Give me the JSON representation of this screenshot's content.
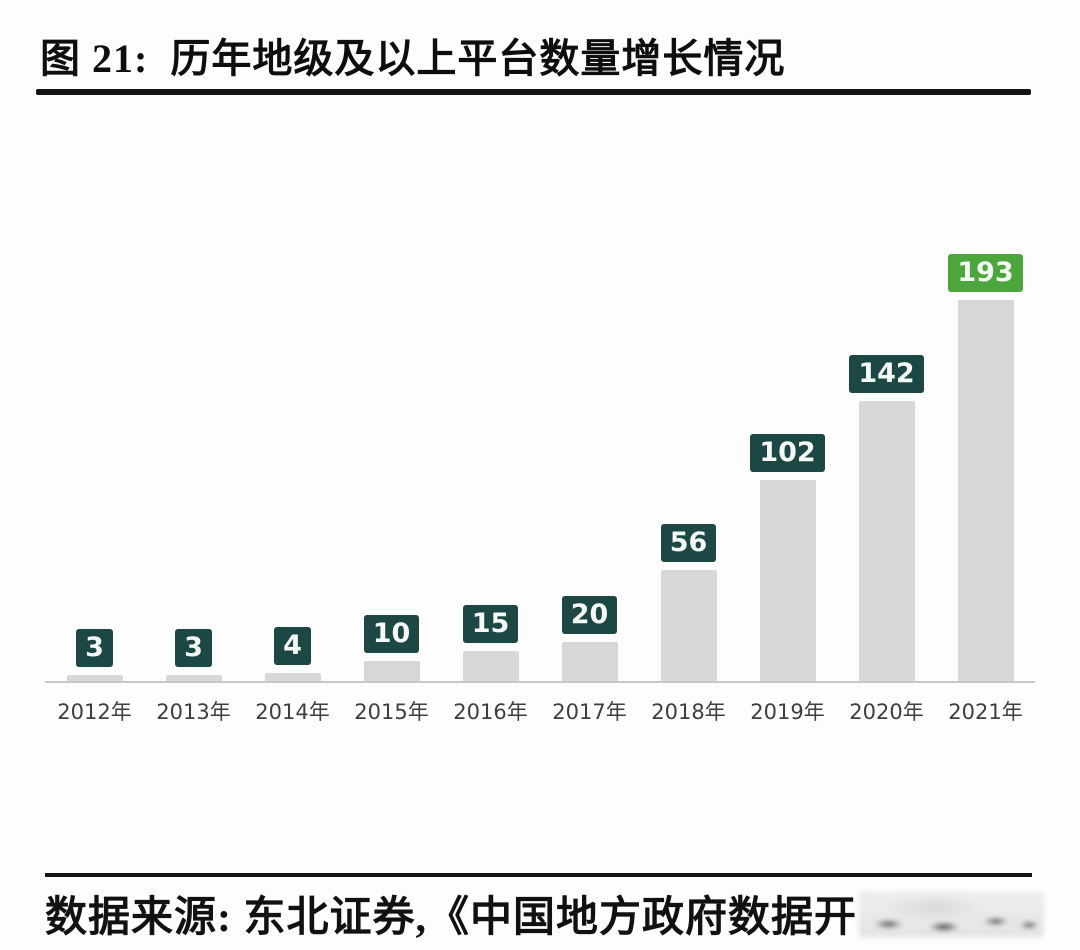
{
  "figure": {
    "label": "图 21:",
    "title": "历年地级及以上平台数量增长情况"
  },
  "chart_data": {
    "type": "bar",
    "title": "历年地级及以上平台数量增长情况",
    "categories": [
      "2012年",
      "2013年",
      "2014年",
      "2015年",
      "2016年",
      "2017年",
      "2018年",
      "2019年",
      "2020年",
      "2021年"
    ],
    "values": [
      3,
      3,
      4,
      10,
      15,
      20,
      56,
      102,
      142,
      193
    ],
    "xlabel": "",
    "ylabel": "",
    "ylim": [
      0,
      200
    ],
    "grid": false,
    "legend": "none",
    "data_labels": true,
    "highlight_index": 9,
    "bar_color": "#d7d7d7",
    "label_box_color": "#1c4745",
    "label_box_highlight_color": "#4ca63c",
    "label_text_color": "#f4f8f7",
    "axis_line_color": "#c8c8c8",
    "tick_label_color": "#3e3e3e"
  },
  "source": {
    "prefix": "数据来源: 东北证券,《中国地方政府数据开"
  }
}
